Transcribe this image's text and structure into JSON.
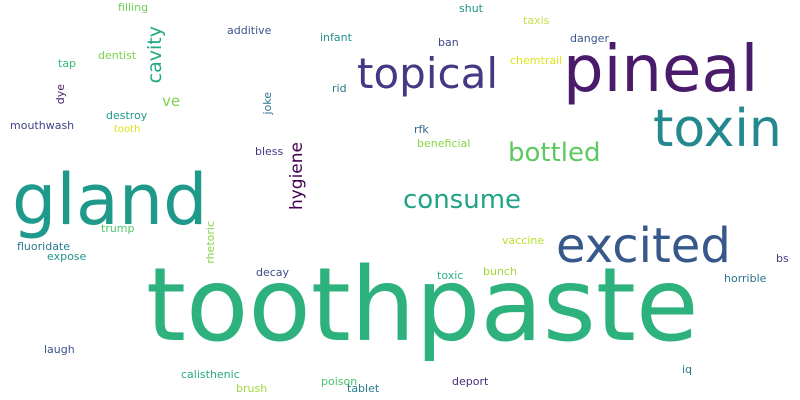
{
  "words": {
    "toothpaste": {
      "text": "toothpaste",
      "color": "#2db27d"
    },
    "gland": {
      "text": "gland",
      "color": "#1f9a8a"
    },
    "pineal": {
      "text": "pineal",
      "color": "#4a1a6b"
    },
    "toxin": {
      "text": "toxin",
      "color": "#23898e"
    },
    "excited": {
      "text": "excited",
      "color": "#37588a"
    },
    "topical": {
      "text": "topical",
      "color": "#443a83"
    },
    "consume": {
      "text": "consume",
      "color": "#20a386"
    },
    "bottled": {
      "text": "bottled",
      "color": "#5ec962"
    },
    "cavity": {
      "text": "cavity",
      "color": "#22a884"
    },
    "hygiene": {
      "text": "hygiene",
      "color": "#440154"
    },
    "filling": {
      "text": "filling",
      "color": "#6ece58"
    },
    "shut": {
      "text": "shut",
      "color": "#20928c"
    },
    "taxis": {
      "text": "taxis",
      "color": "#c5df45"
    },
    "additive": {
      "text": "additive",
      "color": "#3b528b"
    },
    "infant": {
      "text": "infant",
      "color": "#21918c"
    },
    "danger": {
      "text": "danger",
      "color": "#39568c"
    },
    "ban": {
      "text": "ban",
      "color": "#404688"
    },
    "chemtrail": {
      "text": "chemtrail",
      "color": "#dde318"
    },
    "dentist": {
      "text": "dentist",
      "color": "#7ad151"
    },
    "tap": {
      "text": "tap",
      "color": "#35b779"
    },
    "dye": {
      "text": "dye",
      "color": "#481a6c"
    },
    "ve": {
      "text": "ve",
      "color": "#7ad151"
    },
    "rid": {
      "text": "rid",
      "color": "#2a788e"
    },
    "joke": {
      "text": "joke",
      "color": "#2c728e"
    },
    "destroy": {
      "text": "destroy",
      "color": "#1e9b8a"
    },
    "tooth": {
      "text": "tooth",
      "color": "#dce319"
    },
    "mouthwash": {
      "text": "mouthwash",
      "color": "#414487"
    },
    "rfk": {
      "text": "rfk",
      "color": "#31688e"
    },
    "beneficial": {
      "text": "beneficial",
      "color": "#86d549"
    },
    "bless": {
      "text": "bless",
      "color": "#453781"
    },
    "fluoridate": {
      "text": "fluoridate",
      "color": "#2a788e"
    },
    "trump": {
      "text": "trump",
      "color": "#52c569"
    },
    "expose": {
      "text": "expose",
      "color": "#1f968b"
    },
    "rhetoric": {
      "text": "rhetoric",
      "color": "#86d549"
    },
    "vaccine": {
      "text": "vaccine",
      "color": "#b5de2b"
    },
    "bs": {
      "text": "bs",
      "color": "#433e85"
    },
    "decay": {
      "text": "decay",
      "color": "#3e4a89"
    },
    "toxic": {
      "text": "toxic",
      "color": "#2db27d"
    },
    "bunch": {
      "text": "bunch",
      "color": "#a0da39"
    },
    "horrible": {
      "text": "horrible",
      "color": "#2c728e"
    },
    "laugh": {
      "text": "laugh",
      "color": "#3b528b"
    },
    "calisthenic": {
      "text": "calisthenic",
      "color": "#25ab82"
    },
    "poison": {
      "text": "poison",
      "color": "#4ac16d"
    },
    "deport": {
      "text": "deport",
      "color": "#472d7b"
    },
    "iq": {
      "text": "iq",
      "color": "#2a788e"
    },
    "brush": {
      "text": "brush",
      "color": "#9fda3a"
    },
    "tablet": {
      "text": "tablet",
      "color": "#287c8e"
    }
  }
}
